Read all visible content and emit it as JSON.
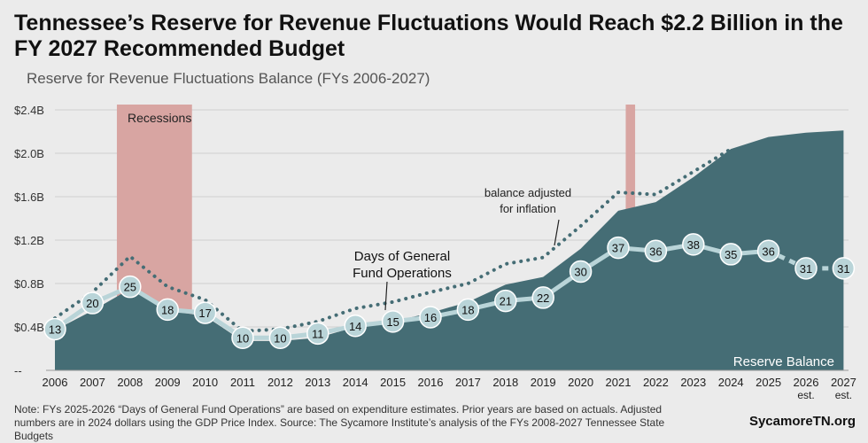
{
  "header": {
    "title": "Tennessee’s Reserve for Revenue Fluctuations Would Reach $2.2 Billion in the FY 2027 Recommended Budget",
    "subtitle": "Reserve for Revenue Fluctuations Balance (FYs 2006-2027)"
  },
  "footer": {
    "note": "Note: FYs 2025-2026 “Days of General Fund Operations” are based on expenditure estimates. Prior years are based on actuals. Adjusted numbers are in 2024 dollars using the GDP Price Index. Source: The Sycamore Institute’s analysis of the FYs 2008-2027 Tennessee State Budgets",
    "brand": "SycamoreTN.org"
  },
  "colors": {
    "area": "#456d75",
    "recession": "#d8a5a2",
    "days_line": "#b9d4d8",
    "days_marker_fill": "#b9d4d8",
    "inflation_dots": "#456d75",
    "grid": "#cfcfcf"
  },
  "chart_data": {
    "type": "area",
    "x": [
      "2006",
      "2007",
      "2008",
      "2009",
      "2010",
      "2011",
      "2012",
      "2013",
      "2014",
      "2015",
      "2016",
      "2017",
      "2018",
      "2019",
      "2020",
      "2021",
      "2022",
      "2023",
      "2024",
      "2025",
      "2026",
      "2027"
    ],
    "x_tick_labels": [
      {
        "year": "2006",
        "sub": ""
      },
      {
        "year": "2007",
        "sub": ""
      },
      {
        "year": "2008",
        "sub": ""
      },
      {
        "year": "2009",
        "sub": ""
      },
      {
        "year": "2010",
        "sub": ""
      },
      {
        "year": "2011",
        "sub": ""
      },
      {
        "year": "2012",
        "sub": ""
      },
      {
        "year": "2013",
        "sub": ""
      },
      {
        "year": "2014",
        "sub": ""
      },
      {
        "year": "2015",
        "sub": ""
      },
      {
        "year": "2016",
        "sub": ""
      },
      {
        "year": "2017",
        "sub": ""
      },
      {
        "year": "2018",
        "sub": ""
      },
      {
        "year": "2019",
        "sub": ""
      },
      {
        "year": "2020",
        "sub": ""
      },
      {
        "year": "2021",
        "sub": ""
      },
      {
        "year": "2022",
        "sub": ""
      },
      {
        "year": "2023",
        "sub": ""
      },
      {
        "year": "2024",
        "sub": ""
      },
      {
        "year": "2025",
        "sub": ""
      },
      {
        "year": "2026",
        "sub": "est."
      },
      {
        "year": "2027",
        "sub": "est."
      }
    ],
    "y_ticks": [
      {
        "value": 0,
        "label": "--"
      },
      {
        "value": 0.4,
        "label": "$0.4B"
      },
      {
        "value": 0.8,
        "label": "$0.8B"
      },
      {
        "value": 1.2,
        "label": "$1.2B"
      },
      {
        "value": 1.6,
        "label": "$1.6B"
      },
      {
        "value": 2.0,
        "label": "$2.0B"
      },
      {
        "value": 2.4,
        "label": "$2.4B"
      }
    ],
    "ylim": [
      0,
      2.4
    ],
    "grid": true,
    "series": [
      {
        "name": "Reserve Balance",
        "kind": "area",
        "values": [
          0.37,
          0.55,
          0.75,
          0.55,
          0.5,
          0.27,
          0.27,
          0.3,
          0.4,
          0.45,
          0.53,
          0.63,
          0.79,
          0.86,
          1.12,
          1.47,
          1.55,
          1.78,
          2.04,
          2.15,
          2.19,
          2.21
        ]
      },
      {
        "name": "balance adjusted for inflation",
        "kind": "dotted-line",
        "values": [
          0.48,
          0.72,
          1.05,
          0.77,
          0.65,
          0.36,
          0.38,
          0.45,
          0.57,
          0.63,
          0.72,
          0.8,
          0.98,
          1.04,
          1.33,
          1.64,
          1.62,
          1.83,
          2.04,
          null,
          null,
          null
        ]
      },
      {
        "name": "Days of General Fund Operations",
        "kind": "marker-line",
        "labels": [
          "13",
          "20",
          "25",
          "18",
          "17",
          "10",
          "10",
          "11",
          "14",
          "15",
          "16",
          "18",
          "21",
          "22",
          "30",
          "37",
          "36",
          "38",
          "35",
          "36",
          "31",
          "31"
        ],
        "values": [
          13,
          20,
          25,
          18,
          17,
          10,
          10,
          11,
          14,
          15,
          16,
          18,
          21,
          22,
          30,
          37,
          36,
          38,
          35,
          36,
          31,
          31
        ],
        "marker_y_values": [
          0.38,
          0.62,
          0.77,
          0.56,
          0.53,
          0.3,
          0.3,
          0.34,
          0.41,
          0.45,
          0.49,
          0.56,
          0.64,
          0.67,
          0.91,
          1.13,
          1.1,
          1.16,
          1.07,
          1.1,
          0.94,
          0.94
        ],
        "estimate_from_index": 19
      }
    ],
    "recessions": [
      {
        "label": "Recessions",
        "x_start": 2007.65,
        "x_end": 2009.65
      },
      {
        "label": "",
        "x_start": 2021.2,
        "x_end": 2021.45
      }
    ],
    "annotations": {
      "reserve_label": "Reserve Balance",
      "inflation_label_line1": "balance adjusted",
      "inflation_label_line2": "for inflation",
      "days_label_line1": "Days of General",
      "days_label_line2": "Fund Operations"
    }
  }
}
